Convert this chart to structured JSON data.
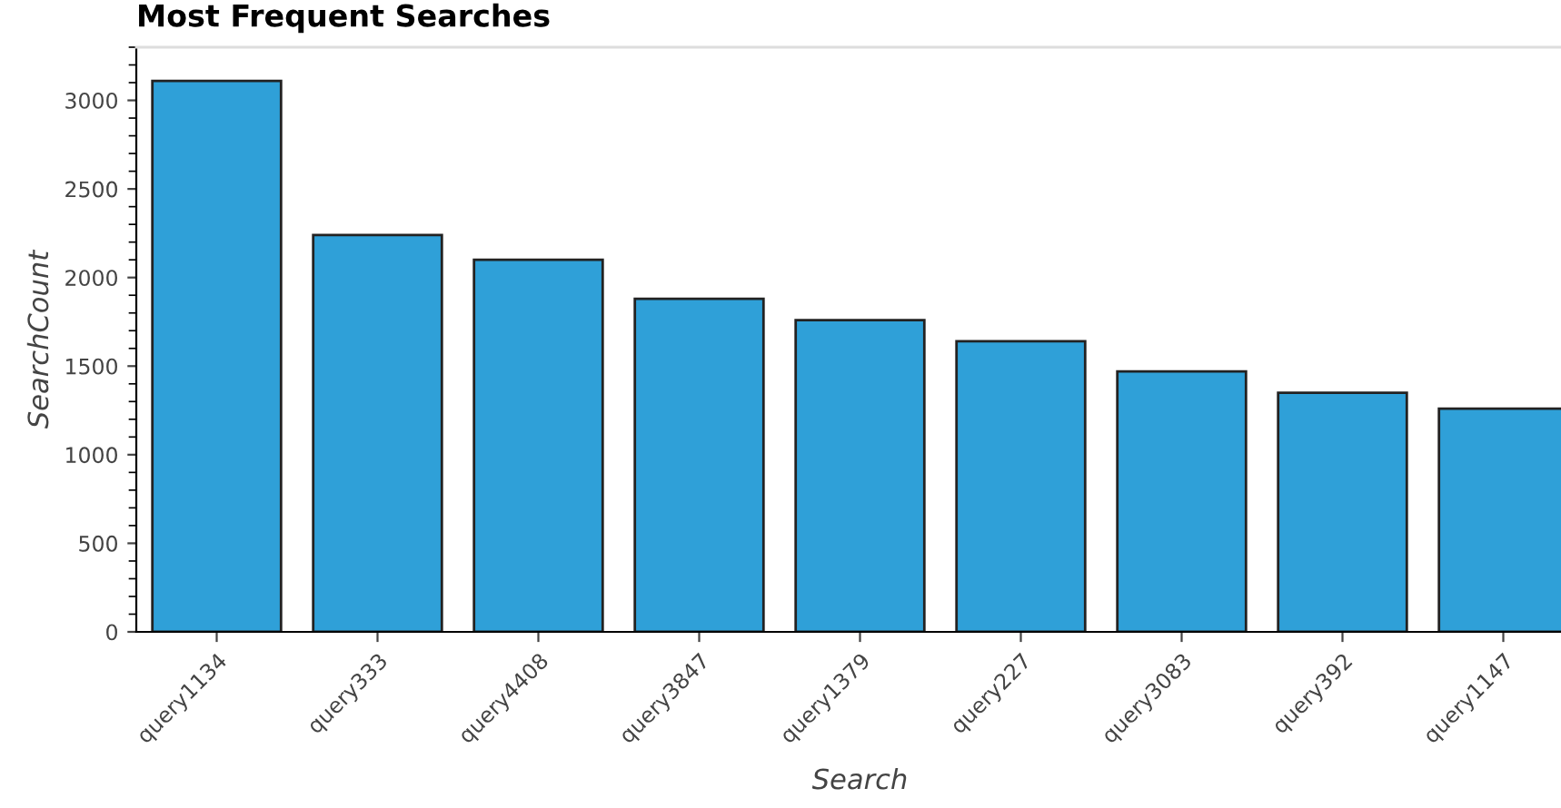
{
  "chart_data": {
    "type": "bar",
    "title": "Most Frequent Searches",
    "xlabel": "Search",
    "ylabel": "SearchCount",
    "categories": [
      "query1134",
      "query333",
      "query4408",
      "query3847",
      "query1379",
      "query227",
      "query3083",
      "query392",
      "query1147"
    ],
    "values": [
      3110,
      2240,
      2100,
      1880,
      1760,
      1640,
      1470,
      1350,
      1260
    ],
    "color": "#2fa0d8",
    "ylim": [
      0,
      3300
    ],
    "yticks": [
      0,
      500,
      1000,
      1500,
      2000,
      2500,
      3000
    ],
    "grid": false,
    "legend": false
  }
}
